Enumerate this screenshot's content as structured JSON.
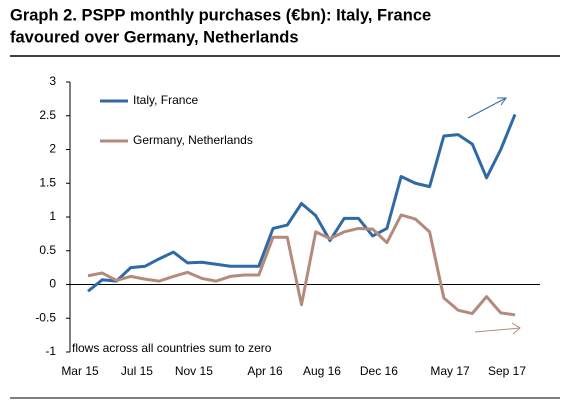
{
  "chart_data": {
    "type": "line",
    "title": [
      "Graph 2. PSPP monthly purchases (€bn): Italy, France",
      "favoured over Germany, Netherlands"
    ],
    "annotation": "flows across all countries sum to zero",
    "categories": [
      "Mar 15",
      null,
      null,
      null,
      "Jul 15",
      null,
      null,
      null,
      "Nov 15",
      null,
      null,
      null,
      null,
      "Apr 16",
      null,
      null,
      null,
      "Aug 16",
      null,
      null,
      null,
      "Dec 16",
      null,
      null,
      null,
      null,
      "May 17",
      null,
      null,
      null,
      "Sep 17"
    ],
    "series": [
      {
        "name": "Italy, France",
        "color": "#2f6aa6",
        "values": [
          -0.1,
          0.07,
          0.05,
          0.25,
          0.27,
          0.38,
          0.48,
          0.32,
          0.33,
          0.3,
          0.27,
          0.27,
          0.27,
          0.83,
          0.88,
          1.2,
          1.02,
          0.65,
          0.98,
          0.98,
          0.72,
          0.83,
          1.6,
          1.5,
          1.45,
          2.2,
          2.22,
          2.08,
          1.58,
          2.0,
          2.52
        ]
      },
      {
        "name": "Germany, Netherlands",
        "color": "#b38b7d",
        "values": [
          0.13,
          0.17,
          0.06,
          0.12,
          0.08,
          0.05,
          0.12,
          0.18,
          0.09,
          0.05,
          0.12,
          0.14,
          0.14,
          0.7,
          0.7,
          -0.3,
          0.78,
          0.68,
          0.78,
          0.83,
          0.82,
          0.62,
          1.03,
          0.97,
          0.78,
          -0.2,
          -0.38,
          -0.43,
          -0.18,
          -0.42,
          -0.45
        ]
      }
    ],
    "ylim": [
      -1,
      3
    ],
    "yticks": [
      -1,
      -0.5,
      0,
      0.5,
      1,
      1.5,
      2,
      2.5,
      3
    ]
  }
}
